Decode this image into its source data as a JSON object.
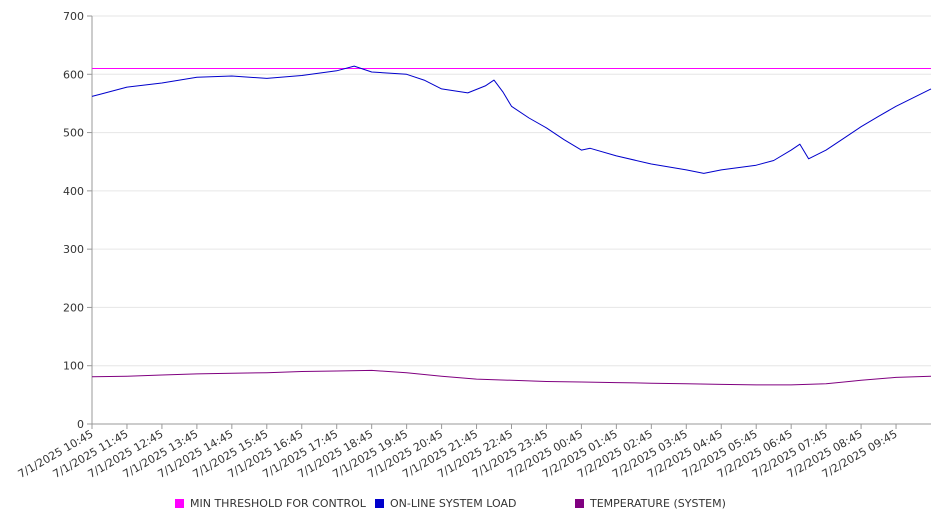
{
  "chart_data": {
    "type": "line",
    "y_ticks": [
      "0",
      "100",
      "200",
      "300",
      "400",
      "500",
      "600",
      "700"
    ],
    "ylim": [
      0,
      700
    ],
    "x_tick_labels": [
      "7/1/2025 10:45",
      "7/1/2025 11:45",
      "7/1/2025 12:45",
      "7/1/2025 13:45",
      "7/1/2025 14:45",
      "7/1/2025 15:45",
      "7/1/2025 16:45",
      "7/1/2025 17:45",
      "7/1/2025 18:45",
      "7/1/2025 19:45",
      "7/1/2025 20:45",
      "7/1/2025 21:45",
      "7/1/2025 22:45",
      "7/1/2025 23:45",
      "7/2/2025 00:45",
      "7/2/2025 01:45",
      "7/2/2025 02:45",
      "7/2/2025 03:45",
      "7/2/2025 04:45",
      "7/2/2025 05:45",
      "7/2/2025 06:45",
      "7/2/2025 07:45",
      "7/2/2025 08:45",
      "7/2/2025 09:45"
    ],
    "x_start": "7/1/2025 10:45",
    "x_end": "7/2/2025 10:45",
    "grid": true,
    "legend_position": "bottom",
    "series": [
      {
        "name": "MIN THRESHOLD FOR CONTROL",
        "color": "#ff00ff",
        "x": [
          "7/1/2025 10:45",
          "7/2/2025 10:45"
        ],
        "y": [
          610,
          610
        ]
      },
      {
        "name": "ON-LINE SYSTEM LOAD",
        "color": "#0000cc",
        "x": [
          "7/1/2025 10:45",
          "7/1/2025 11:00",
          "7/1/2025 11:45",
          "7/1/2025 12:45",
          "7/1/2025 13:45",
          "7/1/2025 14:45",
          "7/1/2025 15:45",
          "7/1/2025 16:45",
          "7/1/2025 17:45",
          "7/1/2025 18:15",
          "7/1/2025 18:45",
          "7/1/2025 19:45",
          "7/1/2025 20:15",
          "7/1/2025 20:45",
          "7/1/2025 21:30",
          "7/1/2025 22:00",
          "7/1/2025 22:15",
          "7/1/2025 22:30",
          "7/1/2025 22:45",
          "7/1/2025 23:15",
          "7/1/2025 23:45",
          "7/2/2025 00:15",
          "7/2/2025 00:45",
          "7/2/2025 01:00",
          "7/2/2025 01:45",
          "7/2/2025 02:45",
          "7/2/2025 03:45",
          "7/2/2025 04:15",
          "7/2/2025 04:45",
          "7/2/2025 05:45",
          "7/2/2025 06:15",
          "7/2/2025 06:45",
          "7/2/2025 07:00",
          "7/2/2025 07:15",
          "7/2/2025 07:45",
          "7/2/2025 08:15",
          "7/2/2025 08:45",
          "7/2/2025 09:15",
          "7/2/2025 09:45",
          "7/2/2025 10:45"
        ],
        "y": [
          562,
          566,
          578,
          585,
          595,
          597,
          593,
          598,
          606,
          614,
          604,
          600,
          590,
          575,
          568,
          580,
          590,
          570,
          545,
          525,
          508,
          488,
          470,
          473,
          460,
          446,
          436,
          430,
          436,
          444,
          452,
          470,
          480,
          455,
          470,
          490,
          510,
          528,
          545,
          575
        ]
      },
      {
        "name": "TEMPERATURE (SYSTEM)",
        "color": "#800080",
        "x": [
          "7/1/2025 10:45",
          "7/1/2025 11:45",
          "7/1/2025 12:45",
          "7/1/2025 13:45",
          "7/1/2025 14:45",
          "7/1/2025 15:45",
          "7/1/2025 16:45",
          "7/1/2025 17:45",
          "7/1/2025 18:45",
          "7/1/2025 19:45",
          "7/1/2025 20:45",
          "7/1/2025 21:45",
          "7/1/2025 22:45",
          "7/1/2025 23:45",
          "7/2/2025 00:45",
          "7/2/2025 01:45",
          "7/2/2025 02:45",
          "7/2/2025 03:45",
          "7/2/2025 04:45",
          "7/2/2025 05:45",
          "7/2/2025 06:45",
          "7/2/2025 07:45",
          "7/2/2025 08:45",
          "7/2/2025 09:45",
          "7/2/2025 10:45"
        ],
        "y": [
          81,
          82,
          84,
          86,
          87,
          88,
          90,
          91,
          92,
          88,
          82,
          77,
          75,
          73,
          72,
          71,
          70,
          69,
          68,
          67,
          67,
          69,
          75,
          80,
          82
        ]
      }
    ]
  }
}
